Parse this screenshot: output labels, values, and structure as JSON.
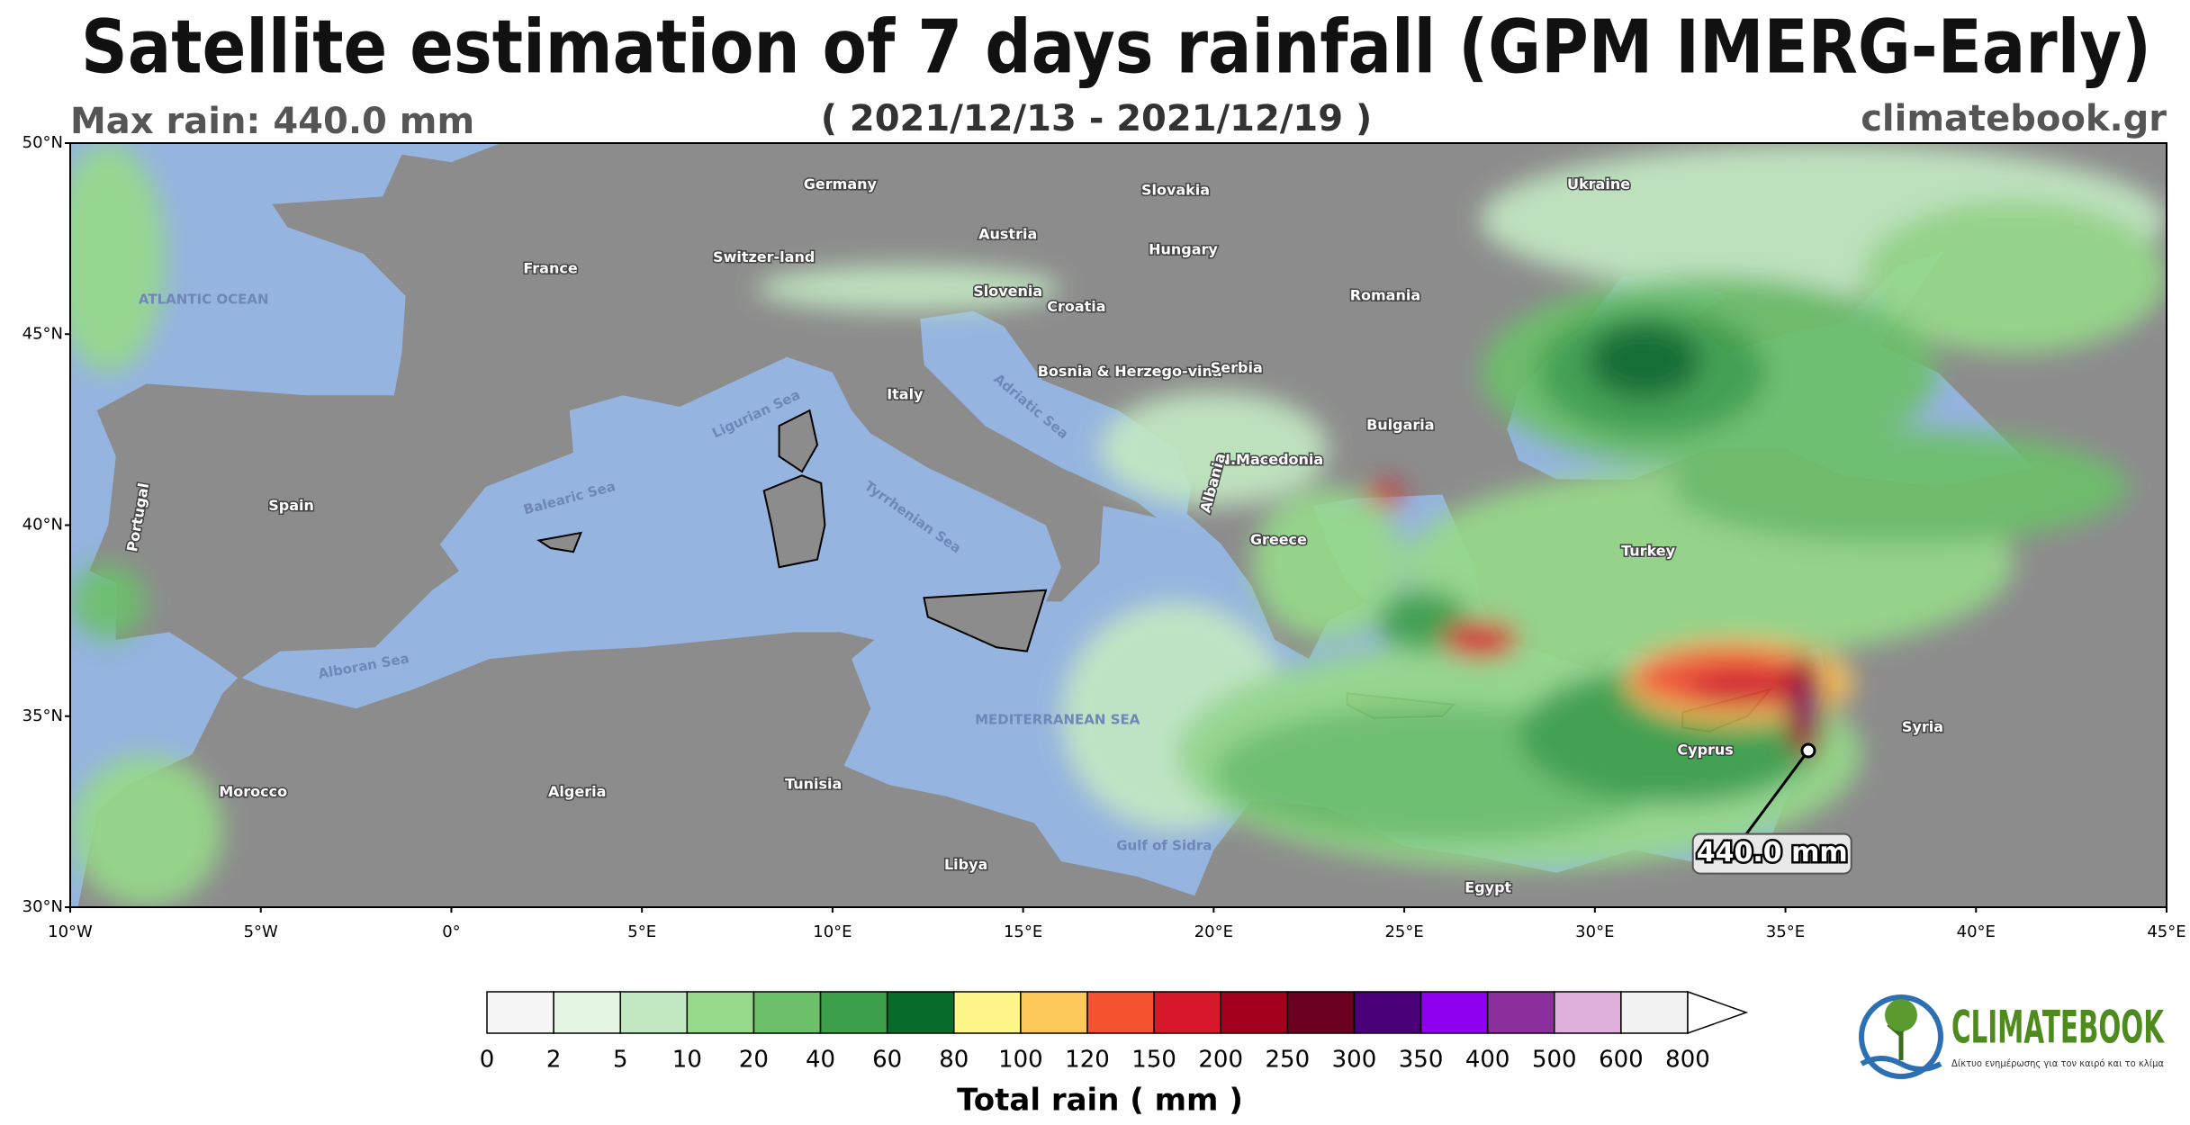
{
  "header": {
    "title": "Satellite estimation of 7 days rainfall (GPM IMERG-Early)",
    "max_rain": "Max rain: 440.0 mm",
    "date_range": "( 2021/12/13 - 2021/12/19 )",
    "site": "climatebook.gr"
  },
  "map": {
    "lat_ticks": [
      "50°N",
      "45°N",
      "40°N",
      "35°N",
      "30°N"
    ],
    "lon_ticks": [
      "10°W",
      "5°W",
      "0°",
      "5°E",
      "10°E",
      "15°E",
      "20°E",
      "25°E",
      "30°E",
      "35°E",
      "40°E",
      "45°E"
    ],
    "countries": [
      "Germany",
      "Slovakia",
      "Ukraine",
      "Austria",
      "Hungary",
      "France",
      "Switzer-land",
      "Slovenia",
      "Croatia",
      "Romania",
      "Bosnia & Herzego-vina",
      "Serbia",
      "Italy",
      "Bulgaria",
      "N.Macedonia",
      "Albania",
      "Spain",
      "Portugal",
      "Greece",
      "Turkey",
      "Morocco",
      "Algeria",
      "Tunisia",
      "Libya",
      "Egypt",
      "Cyprus",
      "Syria"
    ],
    "seas": [
      "ATLANTIC OCEAN",
      "Ligurian Sea",
      "Balearic Sea",
      "Tyrrhenian Sea",
      "Adriatic Sea",
      "Alboran Sea",
      "MEDITERRANEAN SEA",
      "Gulf of Sidra"
    ],
    "max_label": "440.0 mm"
  },
  "colorbar": {
    "levels": [
      0,
      2,
      5,
      10,
      20,
      40,
      60,
      80,
      100,
      120,
      150,
      200,
      250,
      300,
      350,
      400,
      500,
      600,
      800
    ],
    "colors": [
      "#f5f5f5",
      "#e4f5e3",
      "#c2e8c2",
      "#96d98a",
      "#6cc06a",
      "#3ca04a",
      "#076b2b",
      "#fff68a",
      "#fdc85a",
      "#f5532f",
      "#d7172a",
      "#a3001e",
      "#6b0021",
      "#4a0078",
      "#9000f0",
      "#8b2f9c",
      "#e0b0dc",
      "#f2f2f2"
    ],
    "label": "Total rain ( mm )"
  },
  "logo": {
    "name": "CLIMATEBOOK",
    "tagline": "Δίκτυο ενημέρωσης για τον καιρό και το κλίμα"
  }
}
